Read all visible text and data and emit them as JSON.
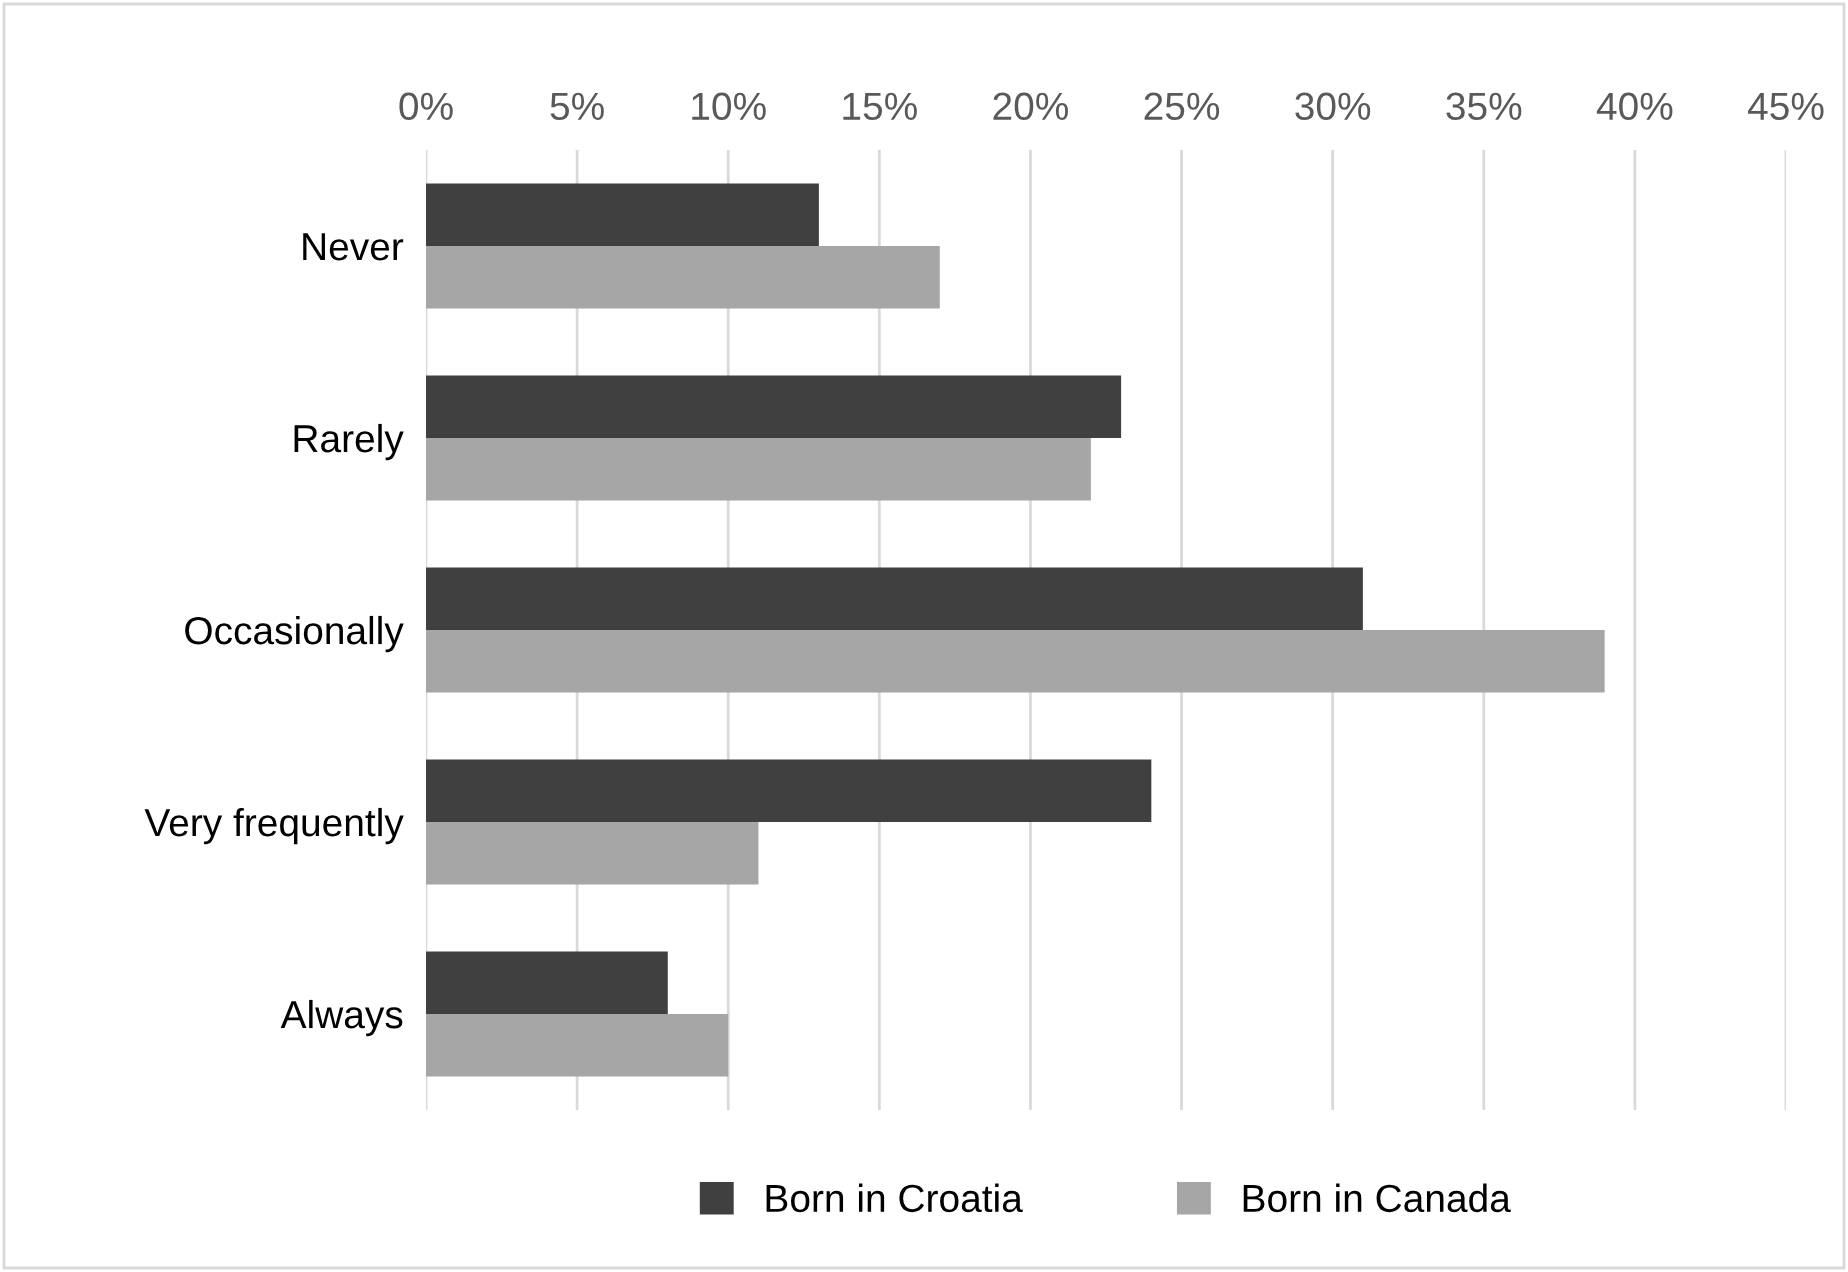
{
  "chart_data": {
    "type": "bar",
    "orientation": "horizontal",
    "categories": [
      "Never",
      "Rarely",
      "Occasionally",
      "Very frequently",
      "Always"
    ],
    "series": [
      {
        "name": "Born in Croatia",
        "color": "#404040",
        "values": [
          13,
          23,
          31,
          24,
          8
        ]
      },
      {
        "name": "Born in Canada",
        "color": "#a6a6a6",
        "values": [
          17,
          22,
          39,
          11,
          10
        ]
      }
    ],
    "xlim": [
      0,
      45
    ],
    "xticks": [
      {
        "value": 0,
        "label": "0%"
      },
      {
        "value": 5,
        "label": "5%"
      },
      {
        "value": 10,
        "label": "10%"
      },
      {
        "value": 15,
        "label": "15%"
      },
      {
        "value": 20,
        "label": "20%"
      },
      {
        "value": 25,
        "label": "25%"
      },
      {
        "value": 30,
        "label": "30%"
      },
      {
        "value": 35,
        "label": "35%"
      },
      {
        "value": 40,
        "label": "40%"
      },
      {
        "value": 45,
        "label": "45%"
      }
    ],
    "grid": "x",
    "legend": "bottom"
  }
}
